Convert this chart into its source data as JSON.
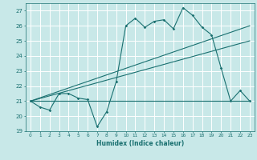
{
  "title": "",
  "xlabel": "Humidex (Indice chaleur)",
  "ylabel": "",
  "bg_color": "#c8e8e8",
  "grid_color": "#ffffff",
  "line_color": "#1a7070",
  "xlim": [
    -0.5,
    23.5
  ],
  "ylim": [
    19,
    27.5
  ],
  "xticks": [
    0,
    1,
    2,
    3,
    4,
    5,
    6,
    7,
    8,
    9,
    10,
    11,
    12,
    13,
    14,
    15,
    16,
    17,
    18,
    19,
    20,
    21,
    22,
    23
  ],
  "yticks": [
    19,
    20,
    21,
    22,
    23,
    24,
    25,
    26,
    27
  ],
  "series1_x": [
    0,
    1,
    2,
    3,
    4,
    5,
    6,
    7,
    8,
    9,
    10,
    11,
    12,
    13,
    14,
    15,
    16,
    17,
    18,
    19,
    20,
    21,
    22,
    23
  ],
  "series1_y": [
    21.0,
    20.6,
    20.4,
    21.5,
    21.5,
    21.2,
    21.1,
    19.3,
    20.3,
    22.3,
    26.0,
    26.5,
    25.9,
    26.3,
    26.4,
    25.8,
    27.2,
    26.7,
    25.9,
    25.4,
    23.2,
    21.0,
    21.7,
    21.0
  ],
  "series2_x": [
    0,
    23
  ],
  "series2_y": [
    21.0,
    21.0
  ],
  "series3_x": [
    0,
    23
  ],
  "series3_y": [
    21.0,
    26.0
  ],
  "series4_x": [
    0,
    23
  ],
  "series4_y": [
    21.0,
    25.0
  ],
  "marker_x": [
    0,
    1,
    2,
    3,
    4,
    5,
    6,
    7,
    8,
    9,
    10,
    11,
    12,
    13,
    14,
    15,
    16,
    17,
    18,
    19,
    20,
    21,
    22,
    23
  ],
  "marker_y": [
    21.0,
    20.6,
    20.4,
    21.5,
    21.5,
    21.2,
    21.1,
    19.3,
    20.3,
    22.3,
    26.0,
    26.5,
    25.9,
    26.3,
    26.4,
    25.8,
    27.2,
    26.7,
    25.9,
    25.4,
    23.2,
    21.0,
    21.7,
    21.0
  ]
}
